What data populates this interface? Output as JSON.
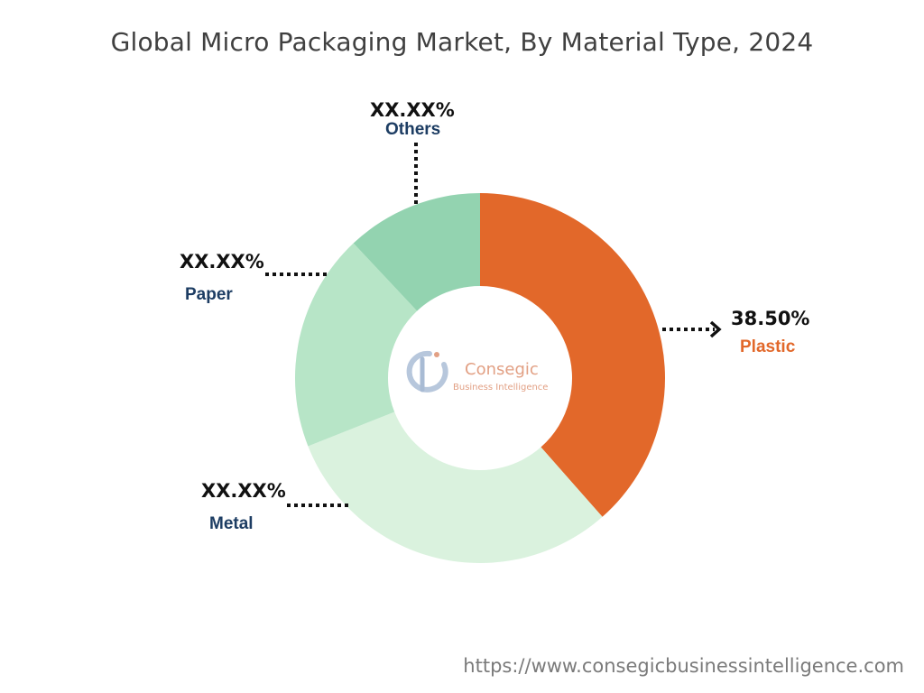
{
  "chart_data": {
    "type": "pie",
    "title": "Global Micro Packaging Market, By Material Type, 2024",
    "donut": true,
    "slices": [
      {
        "label": "Plastic",
        "value": 38.5,
        "value_label": "38.50%",
        "color": "#e2682a"
      },
      {
        "label": "Metal",
        "value": 30.5,
        "value_label": "XX.XX%",
        "color": "#daf2de"
      },
      {
        "label": "Paper",
        "value": 19.0,
        "value_label": "XX.XX%",
        "color": "#b7e5c7"
      },
      {
        "label": "Others",
        "value": 12.0,
        "value_label": "XX.XX%",
        "color": "#93d3b0"
      }
    ]
  },
  "logo": {
    "name": "Consegic",
    "tagline": "Business Intelligence"
  },
  "footer": {
    "url": "https://www.consegicbusinessintelligence.com"
  }
}
